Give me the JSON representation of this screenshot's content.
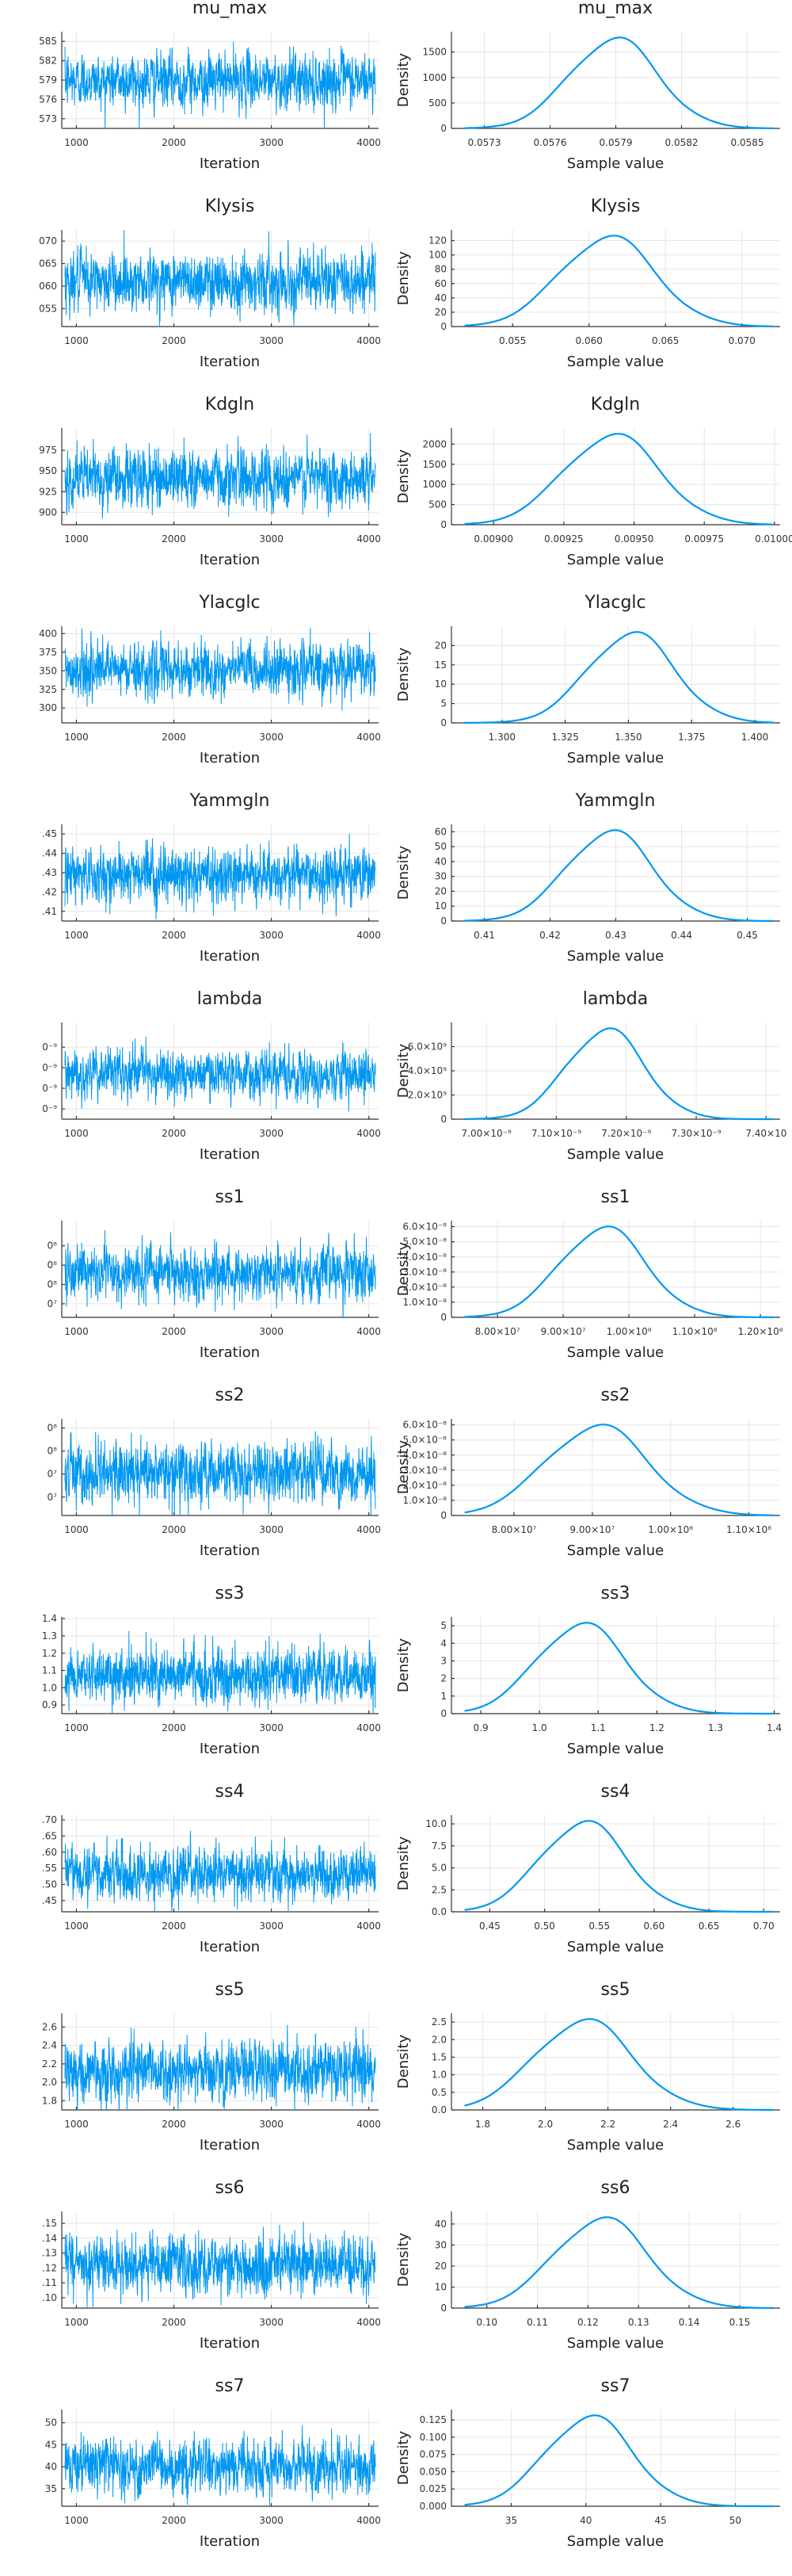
{
  "chart_data": [
    {
      "type": "line",
      "name": "trace",
      "title": "mu_max",
      "xlabel": "Iteration",
      "ylabel": "",
      "xlim": [
        850,
        4100
      ],
      "xticks": [
        "1000",
        "2000",
        "3000",
        "4000"
      ],
      "ylim": [
        0.05715,
        0.05865
      ],
      "yticks": [
        ".05730",
        ".05760",
        ".05790",
        ".05820",
        ".05850"
      ],
      "ytick_labels": [
        "573",
        "576",
        "579",
        "582",
        "585"
      ],
      "mean": 0.05789,
      "sd": 0.0002
    },
    {
      "type": "line",
      "name": "density",
      "title": "mu_max",
      "xlabel": "Sample value",
      "ylabel": "Density",
      "xlim": [
        0.05715,
        0.05865
      ],
      "xticks": [
        0.0573,
        0.0576,
        0.0579,
        0.0582,
        0.0585
      ],
      "xtick_labels": [
        "0.0573",
        "0.0576",
        "0.0579",
        "0.0582",
        "0.0585"
      ],
      "ylim": [
        0,
        1900
      ],
      "yticks": [
        0,
        500,
        1000,
        1500
      ],
      "ytick_labels": [
        "0",
        "500",
        "1000",
        "1500"
      ],
      "mean": 0.05789,
      "sd": 0.0002
    },
    {
      "type": "line",
      "name": "trace",
      "title": "Klysis",
      "xlabel": "Iteration",
      "ylabel": "",
      "xlim": [
        850,
        4100
      ],
      "xticks": [
        "1000",
        "2000",
        "3000",
        "4000"
      ],
      "ylim": [
        0.051,
        0.0725
      ],
      "yticks": [
        0.055,
        0.06,
        0.065,
        0.07
      ],
      "ytick_labels": [
        "055",
        "060",
        "065",
        "070"
      ],
      "mean": 0.0612,
      "sd": 0.0031
    },
    {
      "type": "line",
      "name": "density",
      "title": "Klysis",
      "xlabel": "Sample value",
      "ylabel": "Density",
      "xlim": [
        0.051,
        0.0725
      ],
      "xticks": [
        0.055,
        0.06,
        0.065,
        0.07
      ],
      "xtick_labels": [
        "0.055",
        "0.060",
        "0.065",
        "0.070"
      ],
      "ylim": [
        0,
        135
      ],
      "yticks": [
        0,
        20,
        40,
        60,
        80,
        100,
        120
      ],
      "ytick_labels": [
        "0",
        "20",
        "40",
        "60",
        "80",
        "100",
        "120"
      ],
      "mean": 0.0612,
      "sd": 0.0031
    },
    {
      "type": "line",
      "name": "trace",
      "title": "Kdgln",
      "xlabel": "Iteration",
      "ylabel": "",
      "xlim": [
        850,
        4100
      ],
      "xticks": [
        "1000",
        "2000",
        "3000",
        "4000"
      ],
      "ylim": [
        0.00885,
        0.01002
      ],
      "yticks": [
        0.009,
        0.00925,
        0.0095,
        0.00975
      ],
      "ytick_labels": [
        "900",
        "925",
        "950",
        "975"
      ],
      "mean": 0.00942,
      "sd": 0.00017
    },
    {
      "type": "line",
      "name": "density",
      "title": "Kdgln",
      "xlabel": "Sample value",
      "ylabel": "Density",
      "xlim": [
        0.00885,
        0.01002
      ],
      "xticks": [
        0.009,
        0.00925,
        0.0095,
        0.00975,
        0.01
      ],
      "xtick_labels": [
        "0.00900",
        "0.00925",
        "0.00950",
        "0.00975",
        "0.01000"
      ],
      "ylim": [
        0,
        2400
      ],
      "yticks": [
        0,
        500,
        1000,
        1500,
        2000
      ],
      "ytick_labels": [
        "0",
        "500",
        "1000",
        "1500",
        "2000"
      ],
      "mean": 0.00942,
      "sd": 0.00017
    },
    {
      "type": "line",
      "name": "trace",
      "title": "Ylacglc",
      "xlabel": "Iteration",
      "ylabel": "",
      "xlim": [
        850,
        4100
      ],
      "xticks": [
        "1000",
        "2000",
        "3000",
        "4000"
      ],
      "ylim": [
        1.28,
        1.41
      ],
      "yticks": [
        1.3,
        1.325,
        1.35,
        1.375,
        1.4
      ],
      "ytick_labels": [
        "300",
        "325",
        "350",
        "375",
        "400"
      ],
      "mean": 1.351,
      "sd": 0.017
    },
    {
      "type": "line",
      "name": "density",
      "title": "Ylacglc",
      "xlabel": "Sample value",
      "ylabel": "Density",
      "xlim": [
        1.28,
        1.41
      ],
      "xticks": [
        1.3,
        1.325,
        1.35,
        1.375,
        1.4
      ],
      "xtick_labels": [
        "1.300",
        "1.325",
        "1.350",
        "1.375",
        "1.400"
      ],
      "ylim": [
        0,
        25
      ],
      "yticks": [
        0,
        5,
        10,
        15,
        20
      ],
      "ytick_labels": [
        "0",
        "5",
        "10",
        "15",
        "20"
      ],
      "mean": 1.351,
      "sd": 0.017
    },
    {
      "type": "line",
      "name": "trace",
      "title": "Yammgln",
      "xlabel": "Iteration",
      "ylabel": "",
      "xlim": [
        850,
        4100
      ],
      "xticks": [
        "1000",
        "2000",
        "3000",
        "4000"
      ],
      "ylim": [
        0.405,
        0.455
      ],
      "yticks": [
        0.41,
        0.42,
        0.43,
        0.44,
        0.45
      ],
      "ytick_labels": [
        ".41",
        ".42",
        ".43",
        ".44",
        ".45"
      ],
      "mean": 0.429,
      "sd": 0.0065
    },
    {
      "type": "line",
      "name": "density",
      "title": "Yammgln",
      "xlabel": "Sample value",
      "ylabel": "Density",
      "xlim": [
        0.405,
        0.455
      ],
      "xticks": [
        0.41,
        0.42,
        0.43,
        0.44,
        0.45
      ],
      "xtick_labels": [
        "0.41",
        "0.42",
        "0.43",
        "0.44",
        "0.45"
      ],
      "ylim": [
        0,
        65
      ],
      "yticks": [
        0,
        10,
        20,
        30,
        40,
        50,
        60
      ],
      "ytick_labels": [
        "0",
        "10",
        "20",
        "30",
        "40",
        "50",
        "60"
      ],
      "mean": 0.429,
      "sd": 0.0065
    },
    {
      "type": "line",
      "name": "trace",
      "title": "lambda",
      "xlabel": "Iteration",
      "ylabel": "",
      "xlim": [
        850,
        4100
      ],
      "xticks": [
        "1000",
        "2000",
        "3000",
        "4000"
      ],
      "ylim": [
        6.95e-09,
        7.42e-09
      ],
      "yticks": [
        7e-09,
        7.1e-09,
        7.2e-09,
        7.3e-09
      ],
      "ytick_labels": [
        "0⁻⁹",
        "0⁻⁹",
        "0⁻⁹",
        "0⁻⁹"
      ],
      "mean": 7.17e-09,
      "sd": 5.5e-11
    },
    {
      "type": "line",
      "name": "density",
      "title": "lambda",
      "xlabel": "Sample value",
      "ylabel": "Density",
      "xlim": [
        6.95e-09,
        7.42e-09
      ],
      "xticks": [
        7e-09,
        7.1e-09,
        7.2e-09,
        7.3e-09,
        7.4e-09
      ],
      "xtick_labels": [
        "7.00×10⁻⁹",
        "7.10×10⁻⁹",
        "7.20×10⁻⁹",
        "7.30×10⁻⁹",
        "7.40×10"
      ],
      "ylim": [
        0,
        8000000000.0
      ],
      "yticks": [
        0,
        2000000000.0,
        4000000000.0,
        6000000000.0
      ],
      "ytick_labels": [
        "0",
        "2.0×10⁹",
        "4.0×10⁹",
        "6.0×10⁹"
      ],
      "mean": 7.17e-09,
      "sd": 5.5e-11
    },
    {
      "type": "line",
      "name": "trace",
      "title": "ss1",
      "xlabel": "Iteration",
      "ylabel": "",
      "xlim": [
        850,
        4100
      ],
      "xticks": [
        "1000",
        "2000",
        "3000",
        "4000"
      ],
      "ylim": [
        73000000.0,
        123000000.0
      ],
      "yticks": [
        80000000.0,
        90000000.0,
        100000000.0,
        110000000.0
      ],
      "ytick_labels": [
        "0⁷",
        "0⁸",
        "0⁸",
        "0⁸"
      ],
      "mean": 96000000.0,
      "sd": 6500000.0
    },
    {
      "type": "line",
      "name": "density",
      "title": "ss1",
      "xlabel": "Sample value",
      "ylabel": "Density",
      "xlim": [
        73000000.0,
        123000000.0
      ],
      "xticks": [
        80000000.0,
        90000000.0,
        100000000.0,
        110000000.0,
        120000000.0
      ],
      "xtick_labels": [
        "8.00×10⁷",
        "9.00×10⁷",
        "1.00×10⁸",
        "1.10×10⁸",
        "1.20×10⁸"
      ],
      "ylim": [
        0,
        6.4e-08
      ],
      "yticks": [
        0,
        1e-08,
        2e-08,
        3e-08,
        4e-08,
        5e-08,
        6e-08
      ],
      "ytick_labels": [
        "0",
        "1.0×10⁻⁸",
        "2.0×10⁻⁸",
        "3.0×10⁻⁸",
        "4.0×10⁻⁸",
        "5.0×10⁻⁸",
        "6.0×10⁻⁸"
      ],
      "mean": 96000000.0,
      "sd": 6500000.0
    },
    {
      "type": "line",
      "name": "trace",
      "title": "ss2",
      "xlabel": "Iteration",
      "ylabel": "",
      "xlim": [
        850,
        4100
      ],
      "xticks": [
        "1000",
        "2000",
        "3000",
        "4000"
      ],
      "ylim": [
        72000000.0,
        114000000.0
      ],
      "yticks": [
        80000000.0,
        90000000.0,
        100000000.0,
        110000000.0
      ],
      "ytick_labels": [
        "0⁷",
        "0⁷",
        "0⁸",
        "0⁸"
      ],
      "mean": 90500000.0,
      "sd": 6500000.0
    },
    {
      "type": "line",
      "name": "density",
      "title": "ss2",
      "xlabel": "Sample value",
      "ylabel": "Density",
      "xlim": [
        72000000.0,
        114000000.0
      ],
      "xticks": [
        80000000.0,
        90000000.0,
        100000000.0,
        110000000.0
      ],
      "xtick_labels": [
        "8.00×10⁷",
        "9.00×10⁷",
        "1.00×10⁸",
        "1.10×10⁸"
      ],
      "ylim": [
        0,
        6.4e-08
      ],
      "yticks": [
        0,
        1e-08,
        2e-08,
        3e-08,
        4e-08,
        5e-08,
        6e-08
      ],
      "ytick_labels": [
        "0",
        "1.0×10⁻⁸",
        "2.0×10⁻⁸",
        "3.0×10⁻⁸",
        "4.0×10⁻⁸",
        "5.0×10⁻⁸",
        "6.0×10⁻⁸"
      ],
      "mean": 90500000.0,
      "sd": 6500000.0
    },
    {
      "type": "line",
      "name": "trace",
      "title": "ss3",
      "xlabel": "Iteration",
      "ylabel": "",
      "xlim": [
        850,
        4100
      ],
      "xticks": [
        "1000",
        "2000",
        "3000",
        "4000"
      ],
      "ylim": [
        0.85,
        1.41
      ],
      "yticks": [
        0.9,
        1.0,
        1.1,
        1.2,
        1.3,
        1.4
      ],
      "ytick_labels": [
        "0.9",
        "1.0",
        "1.1",
        "1.2",
        "1.3",
        "1.4"
      ],
      "mean": 1.07,
      "sd": 0.075
    },
    {
      "type": "line",
      "name": "density",
      "title": "ss3",
      "xlabel": "Sample value",
      "ylabel": "Density",
      "xlim": [
        0.85,
        1.41
      ],
      "xticks": [
        0.9,
        1.0,
        1.1,
        1.2,
        1.3,
        1.4
      ],
      "xtick_labels": [
        "0.9",
        "1.0",
        "1.1",
        "1.2",
        "1.3",
        "1.4"
      ],
      "ylim": [
        0,
        5.5
      ],
      "yticks": [
        0,
        1,
        2,
        3,
        4,
        5
      ],
      "ytick_labels": [
        "0",
        "1",
        "2",
        "3",
        "4",
        "5"
      ],
      "mean": 1.07,
      "sd": 0.075
    },
    {
      "type": "line",
      "name": "trace",
      "title": "ss4",
      "xlabel": "Iteration",
      "ylabel": "",
      "xlim": [
        0.415,
        0.715
      ],
      "xticks": [
        "1000",
        "2000",
        "3000",
        "4000"
      ],
      "ylim": [
        0.415,
        0.715
      ],
      "yticks": [
        0.45,
        0.5,
        0.55,
        0.6,
        0.65,
        0.7
      ],
      "ytick_labels": [
        ".45",
        ".50",
        ".55",
        ".60",
        ".65",
        ".70"
      ],
      "mean": 0.535,
      "sd": 0.039
    },
    {
      "type": "line",
      "name": "density",
      "title": "ss4",
      "xlabel": "Sample value",
      "ylabel": "Density",
      "xlim": [
        0.415,
        0.715
      ],
      "xticks": [
        0.45,
        0.5,
        0.55,
        0.6,
        0.65,
        0.7
      ],
      "xtick_labels": [
        "0.45",
        "0.50",
        "0.55",
        "0.60",
        "0.65",
        "0.70"
      ],
      "ylim": [
        0,
        11
      ],
      "yticks": [
        0,
        2.5,
        5,
        7.5,
        10
      ],
      "ytick_labels": [
        "0.0",
        "2.5",
        "5.0",
        "7.5",
        "10.0"
      ],
      "mean": 0.535,
      "sd": 0.039
    },
    {
      "type": "line",
      "name": "trace",
      "title": "ss5",
      "xlabel": "Iteration",
      "ylabel": "",
      "xlim": [
        850,
        4100
      ],
      "xticks": [
        "1000",
        "2000",
        "3000",
        "4000"
      ],
      "ylim": [
        1.7,
        2.75
      ],
      "yticks": [
        1.8,
        2.0,
        2.2,
        2.4,
        2.6
      ],
      "ytick_labels": [
        "1.8",
        "2.0",
        "2.2",
        "2.4",
        "2.6"
      ],
      "mean": 2.12,
      "sd": 0.155
    },
    {
      "type": "line",
      "name": "density",
      "title": "ss5",
      "xlabel": "Sample value",
      "ylabel": "Density",
      "xlim": [
        1.7,
        2.75
      ],
      "xticks": [
        1.8,
        2.0,
        2.2,
        2.4,
        2.6
      ],
      "xtick_labels": [
        "1.8",
        "2.0",
        "2.2",
        "2.4",
        "2.6"
      ],
      "ylim": [
        0,
        2.75
      ],
      "yticks": [
        0,
        0.5,
        1,
        1.5,
        2,
        2.5
      ],
      "ytick_labels": [
        "0.0",
        "0.5",
        "1.0",
        "1.5",
        "2.0",
        "2.5"
      ],
      "mean": 2.12,
      "sd": 0.155
    },
    {
      "type": "line",
      "name": "trace",
      "title": "ss6",
      "xlabel": "Iteration",
      "ylabel": "",
      "xlim": [
        850,
        4100
      ],
      "xticks": [
        "1000",
        "2000",
        "3000",
        "4000"
      ],
      "ylim": [
        0.093,
        0.158
      ],
      "yticks": [
        0.1,
        0.11,
        0.12,
        0.13,
        0.14,
        0.15
      ],
      "ytick_labels": [
        ".10",
        ".11",
        ".12",
        ".13",
        ".14",
        ".15"
      ],
      "mean": 0.1225,
      "sd": 0.0092
    },
    {
      "type": "line",
      "name": "density",
      "title": "ss6",
      "xlabel": "Sample value",
      "ylabel": "Density",
      "xlim": [
        0.093,
        0.158
      ],
      "xticks": [
        0.1,
        0.11,
        0.12,
        0.13,
        0.14,
        0.15
      ],
      "xtick_labels": [
        "0.10",
        "0.11",
        "0.12",
        "0.13",
        "0.14",
        "0.15"
      ],
      "ylim": [
        0,
        46
      ],
      "yticks": [
        0,
        10,
        20,
        30,
        40
      ],
      "ytick_labels": [
        "0",
        "10",
        "20",
        "30",
        "40"
      ],
      "mean": 0.1225,
      "sd": 0.0092
    },
    {
      "type": "line",
      "name": "trace",
      "title": "ss7",
      "xlabel": "Iteration",
      "ylabel": "",
      "xlim": [
        850,
        4100
      ],
      "xticks": [
        "1000",
        "2000",
        "3000",
        "4000"
      ],
      "ylim": [
        31,
        53
      ],
      "yticks": [
        35,
        40,
        45,
        50
      ],
      "ytick_labels": [
        "35",
        "40",
        "45",
        "50"
      ],
      "mean": 40.2,
      "sd": 2.9
    },
    {
      "type": "line",
      "name": "density",
      "title": "ss7",
      "xlabel": "Sample value",
      "ylabel": "Density",
      "xlim": [
        31,
        53
      ],
      "xticks": [
        35,
        40,
        45,
        50
      ],
      "xtick_labels": [
        "35",
        "40",
        "45",
        "50"
      ],
      "ylim": [
        0,
        0.14
      ],
      "yticks": [
        0,
        0.025,
        0.05,
        0.075,
        0.1,
        0.125
      ],
      "ytick_labels": [
        "0.000",
        "0.025",
        "0.050",
        "0.075",
        "0.100",
        "0.125"
      ],
      "mean": 40.2,
      "sd": 2.9
    }
  ]
}
